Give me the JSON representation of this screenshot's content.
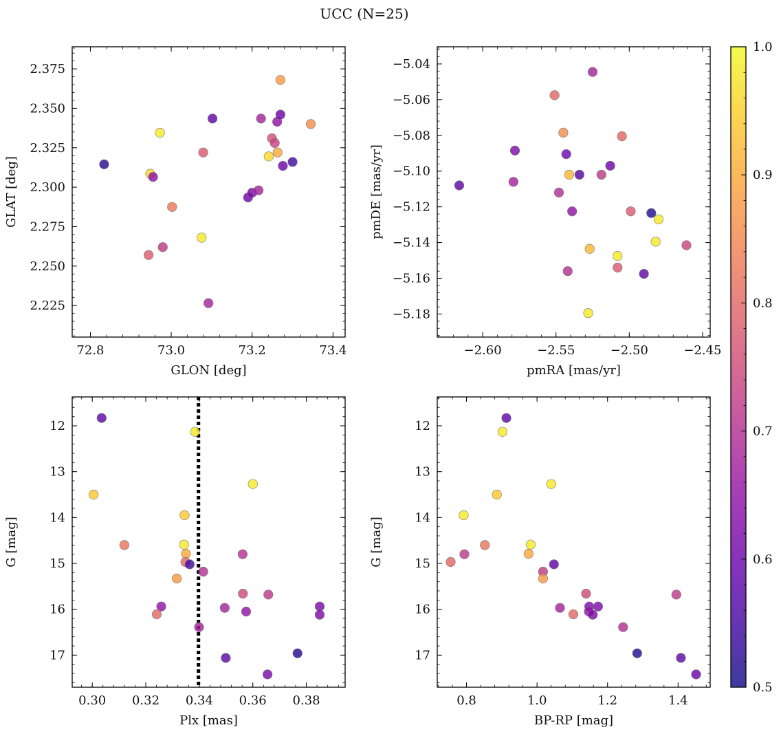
{
  "figure": {
    "title": "UCC (N=25)"
  },
  "colorbar": {
    "min": 0.5,
    "max": 1.0,
    "colormap": "plasma",
    "ticks": [
      0.5,
      0.6,
      0.7,
      0.8,
      0.9,
      1.0
    ],
    "tick_labels": [
      "0.5",
      "0.6",
      "0.7",
      "0.8",
      "0.9",
      "1.0"
    ]
  },
  "chart_data": [
    {
      "type": "scatter",
      "xlabel": "GLON [deg]",
      "ylabel": "GLAT [deg]",
      "xlim": [
        72.755,
        73.43
      ],
      "ylim": [
        2.205,
        2.389
      ],
      "xticks": [
        72.8,
        73.0,
        73.2,
        73.4
      ],
      "xtick_labels": [
        "72.8",
        "73.0",
        "73.2",
        "73.4"
      ],
      "yticks": [
        2.225,
        2.25,
        2.275,
        2.3,
        2.325,
        2.35,
        2.375
      ],
      "ytick_labels": [
        "2.225",
        "2.250",
        "2.275",
        "2.300",
        "2.325",
        "2.350",
        "2.375"
      ],
      "invert_y": false,
      "points": [
        {
          "x": 72.834,
          "y": 2.3145,
          "c": 0.52
        },
        {
          "x": 72.972,
          "y": 2.3345,
          "c": 0.98
        },
        {
          "x": 72.948,
          "y": 2.3085,
          "c": 0.96
        },
        {
          "x": 72.955,
          "y": 2.3065,
          "c": 0.65
        },
        {
          "x": 73.002,
          "y": 2.2875,
          "c": 0.83
        },
        {
          "x": 73.079,
          "y": 2.322,
          "c": 0.78
        },
        {
          "x": 73.102,
          "y": 2.3435,
          "c": 0.58
        },
        {
          "x": 73.075,
          "y": 2.268,
          "c": 0.98
        },
        {
          "x": 72.944,
          "y": 2.257,
          "c": 0.78
        },
        {
          "x": 72.979,
          "y": 2.262,
          "c": 0.72
        },
        {
          "x": 73.092,
          "y": 2.2265,
          "c": 0.68
        },
        {
          "x": 73.19,
          "y": 2.2935,
          "c": 0.6
        },
        {
          "x": 73.2,
          "y": 2.2965,
          "c": 0.62
        },
        {
          "x": 73.216,
          "y": 2.298,
          "c": 0.68
        },
        {
          "x": 73.222,
          "y": 2.3435,
          "c": 0.68
        },
        {
          "x": 73.249,
          "y": 2.331,
          "c": 0.76
        },
        {
          "x": 73.256,
          "y": 2.328,
          "c": 0.74
        },
        {
          "x": 73.262,
          "y": 2.3415,
          "c": 0.65
        },
        {
          "x": 73.263,
          "y": 2.322,
          "c": 0.9
        },
        {
          "x": 73.27,
          "y": 2.346,
          "c": 0.6
        },
        {
          "x": 73.241,
          "y": 2.3195,
          "c": 0.96
        },
        {
          "x": 73.27,
          "y": 2.368,
          "c": 0.88
        },
        {
          "x": 73.276,
          "y": 2.3135,
          "c": 0.6
        },
        {
          "x": 73.3,
          "y": 2.316,
          "c": 0.55
        },
        {
          "x": 73.345,
          "y": 2.34,
          "c": 0.86
        }
      ]
    },
    {
      "type": "scatter",
      "xlabel": "pmRA [mas/yr]",
      "ylabel": "pmDE [mas/yr]",
      "xlim": [
        -2.631,
        -2.4448
      ],
      "ylim": [
        -5.1929,
        -5.0304
      ],
      "xticks": [
        -2.6,
        -2.55,
        -2.5,
        -2.45
      ],
      "xtick_labels": [
        "−2.60",
        "−2.55",
        "−2.50",
        "−2.45"
      ],
      "yticks": [
        -5.18,
        -5.16,
        -5.14,
        -5.12,
        -5.1,
        -5.08,
        -5.06,
        -5.04
      ],
      "ytick_labels": [
        "−5.18",
        "−5.16",
        "−5.14",
        "−5.12",
        "−5.10",
        "−5.08",
        "−5.06",
        "−5.04"
      ],
      "invert_y": false,
      "points": [
        {
          "x": -2.525,
          "y": -5.0445,
          "c": 0.68
        },
        {
          "x": -2.551,
          "y": -5.0575,
          "c": 0.8
        },
        {
          "x": -2.545,
          "y": -5.0785,
          "c": 0.86
        },
        {
          "x": -2.505,
          "y": -5.0805,
          "c": 0.8
        },
        {
          "x": -2.578,
          "y": -5.0885,
          "c": 0.62
        },
        {
          "x": -2.543,
          "y": -5.0905,
          "c": 0.6
        },
        {
          "x": -2.513,
          "y": -5.097,
          "c": 0.6
        },
        {
          "x": -2.541,
          "y": -5.102,
          "c": 0.92
        },
        {
          "x": -2.534,
          "y": -5.102,
          "c": 0.57
        },
        {
          "x": -2.519,
          "y": -5.102,
          "c": 0.72
        },
        {
          "x": -2.616,
          "y": -5.108,
          "c": 0.58
        },
        {
          "x": -2.579,
          "y": -5.106,
          "c": 0.68
        },
        {
          "x": -2.548,
          "y": -5.112,
          "c": 0.7
        },
        {
          "x": -2.539,
          "y": -5.1225,
          "c": 0.65
        },
        {
          "x": -2.499,
          "y": -5.1225,
          "c": 0.78
        },
        {
          "x": -2.485,
          "y": -5.1235,
          "c": 0.52
        },
        {
          "x": -2.48,
          "y": -5.127,
          "c": 0.98
        },
        {
          "x": -2.482,
          "y": -5.1395,
          "c": 0.98
        },
        {
          "x": -2.461,
          "y": -5.1415,
          "c": 0.74
        },
        {
          "x": -2.527,
          "y": -5.1435,
          "c": 0.92
        },
        {
          "x": -2.508,
          "y": -5.1475,
          "c": 0.98
        },
        {
          "x": -2.508,
          "y": -5.154,
          "c": 0.78
        },
        {
          "x": -2.542,
          "y": -5.156,
          "c": 0.7
        },
        {
          "x": -2.49,
          "y": -5.1575,
          "c": 0.58
        },
        {
          "x": -2.528,
          "y": -5.1795,
          "c": 0.98
        }
      ]
    },
    {
      "type": "scatter",
      "xlabel": "Plx [mas]",
      "ylabel": "G [mag]",
      "xlim": [
        0.2925,
        0.3945
      ],
      "ylim": [
        17.7,
        11.37
      ],
      "xticks": [
        0.3,
        0.32,
        0.34,
        0.36,
        0.38
      ],
      "xtick_labels": [
        "0.30",
        "0.32",
        "0.34",
        "0.36",
        "0.38"
      ],
      "yticks": [
        12,
        13,
        14,
        15,
        16,
        17
      ],
      "ytick_labels": [
        "12",
        "13",
        "14",
        "15",
        "16",
        "17"
      ],
      "invert_y": true,
      "vline": 0.3397,
      "points": [
        {
          "x": 0.3035,
          "y": 11.83,
          "c": 0.58
        },
        {
          "x": 0.3384,
          "y": 12.13,
          "c": 0.98
        },
        {
          "x": 0.3005,
          "y": 13.5,
          "c": 0.94
        },
        {
          "x": 0.36,
          "y": 13.27,
          "c": 0.98
        },
        {
          "x": 0.3345,
          "y": 13.95,
          "c": 0.94
        },
        {
          "x": 0.312,
          "y": 14.6,
          "c": 0.82
        },
        {
          "x": 0.3343,
          "y": 14.59,
          "c": 0.98
        },
        {
          "x": 0.335,
          "y": 14.79,
          "c": 0.9
        },
        {
          "x": 0.3562,
          "y": 14.8,
          "c": 0.7
        },
        {
          "x": 0.3348,
          "y": 14.97,
          "c": 0.8
        },
        {
          "x": 0.3364,
          "y": 15.02,
          "c": 0.55
        },
        {
          "x": 0.3415,
          "y": 15.18,
          "c": 0.7
        },
        {
          "x": 0.3316,
          "y": 15.33,
          "c": 0.88
        },
        {
          "x": 0.3563,
          "y": 15.66,
          "c": 0.75
        },
        {
          "x": 0.3658,
          "y": 15.68,
          "c": 0.72
        },
        {
          "x": 0.3258,
          "y": 15.94,
          "c": 0.65
        },
        {
          "x": 0.3495,
          "y": 15.97,
          "c": 0.68
        },
        {
          "x": 0.385,
          "y": 15.94,
          "c": 0.62
        },
        {
          "x": 0.3575,
          "y": 16.05,
          "c": 0.65
        },
        {
          "x": 0.3241,
          "y": 16.11,
          "c": 0.8
        },
        {
          "x": 0.385,
          "y": 16.12,
          "c": 0.62
        },
        {
          "x": 0.3399,
          "y": 16.39,
          "c": 0.68
        },
        {
          "x": 0.3767,
          "y": 16.96,
          "c": 0.52
        },
        {
          "x": 0.3499,
          "y": 17.06,
          "c": 0.58
        },
        {
          "x": 0.3655,
          "y": 17.42,
          "c": 0.62
        }
      ]
    },
    {
      "type": "scatter",
      "xlabel": "BP-RP [mag]",
      "ylabel": "G [mag]",
      "xlim": [
        0.717,
        1.491
      ],
      "ylim": [
        17.7,
        11.37
      ],
      "xticks": [
        0.8,
        1.0,
        1.2,
        1.4
      ],
      "xtick_labels": [
        "0.8",
        "1.0",
        "1.2",
        "1.4"
      ],
      "yticks": [
        12,
        13,
        14,
        15,
        16,
        17
      ],
      "ytick_labels": [
        "12",
        "13",
        "14",
        "15",
        "16",
        "17"
      ],
      "invert_y": true,
      "points": [
        {
          "x": 0.913,
          "y": 11.83,
          "c": 0.58
        },
        {
          "x": 0.902,
          "y": 12.13,
          "c": 0.98
        },
        {
          "x": 0.886,
          "y": 13.5,
          "c": 0.94
        },
        {
          "x": 1.04,
          "y": 13.27,
          "c": 0.98
        },
        {
          "x": 0.792,
          "y": 13.95,
          "c": 0.98
        },
        {
          "x": 0.852,
          "y": 14.6,
          "c": 0.82
        },
        {
          "x": 0.982,
          "y": 14.59,
          "c": 0.98
        },
        {
          "x": 0.794,
          "y": 14.8,
          "c": 0.72
        },
        {
          "x": 0.976,
          "y": 14.79,
          "c": 0.9
        },
        {
          "x": 0.755,
          "y": 14.97,
          "c": 0.8
        },
        {
          "x": 1.048,
          "y": 15.02,
          "c": 0.58
        },
        {
          "x": 1.017,
          "y": 15.18,
          "c": 0.72
        },
        {
          "x": 1.017,
          "y": 15.33,
          "c": 0.88
        },
        {
          "x": 1.139,
          "y": 15.66,
          "c": 0.75
        },
        {
          "x": 1.395,
          "y": 15.68,
          "c": 0.72
        },
        {
          "x": 1.065,
          "y": 15.97,
          "c": 0.68
        },
        {
          "x": 1.148,
          "y": 15.94,
          "c": 0.62
        },
        {
          "x": 1.173,
          "y": 15.94,
          "c": 0.62
        },
        {
          "x": 1.147,
          "y": 16.05,
          "c": 0.65
        },
        {
          "x": 1.103,
          "y": 16.11,
          "c": 0.8
        },
        {
          "x": 1.158,
          "y": 16.12,
          "c": 0.62
        },
        {
          "x": 1.244,
          "y": 16.39,
          "c": 0.7
        },
        {
          "x": 1.284,
          "y": 16.96,
          "c": 0.52
        },
        {
          "x": 1.408,
          "y": 17.06,
          "c": 0.58
        },
        {
          "x": 1.451,
          "y": 17.42,
          "c": 0.6
        }
      ]
    }
  ]
}
